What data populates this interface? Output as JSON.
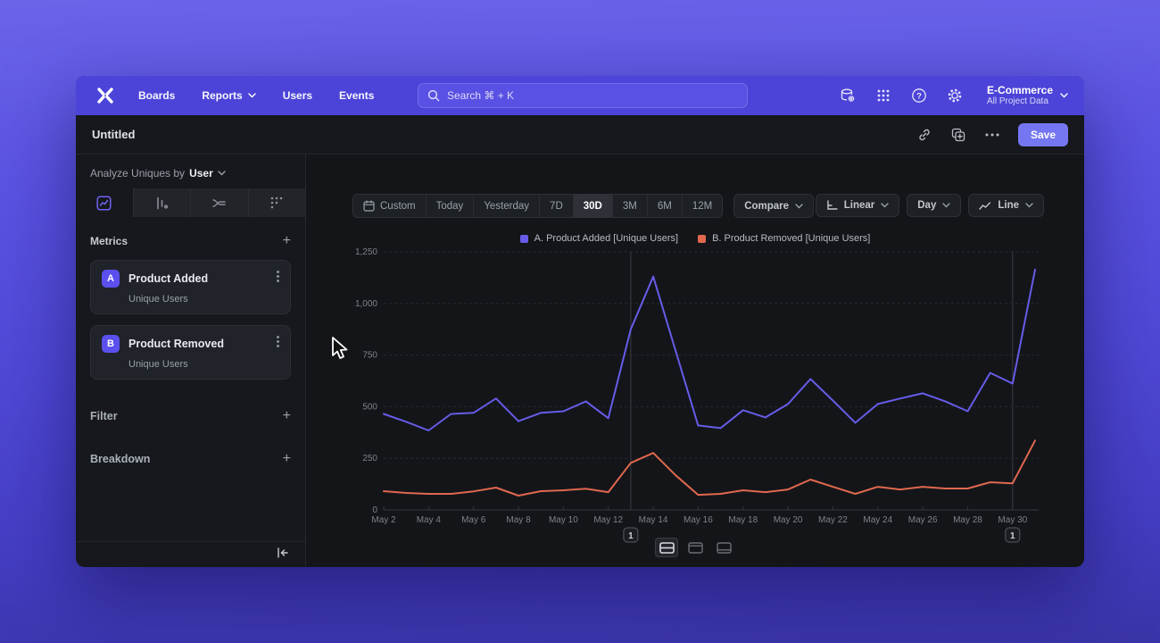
{
  "topnav": {
    "items": [
      "Boards",
      "Reports",
      "Users",
      "Events"
    ],
    "search_placeholder": "Search  ⌘ + K",
    "project": {
      "name": "E-Commerce",
      "subtitle": "All Project Data"
    }
  },
  "titlebar": {
    "title": "Untitled",
    "save_label": "Save"
  },
  "sidebar": {
    "analyze_prefix": "Analyze Uniques by",
    "analyze_value": "User",
    "metrics_label": "Metrics",
    "metrics": [
      {
        "letter": "A",
        "name": "Product Added",
        "sub": "Unique Users"
      },
      {
        "letter": "B",
        "name": "Product Removed",
        "sub": "Unique Users"
      }
    ],
    "filter_label": "Filter",
    "breakdown_label": "Breakdown"
  },
  "toolbar": {
    "ranges": [
      "Custom",
      "Today",
      "Yesterday",
      "7D",
      "30D",
      "3M",
      "6M",
      "12M"
    ],
    "active_range": "30D",
    "compare_label": "Compare",
    "scale_label": "Linear",
    "interval_label": "Day",
    "chart_type_label": "Line"
  },
  "colors": {
    "accent": "#5b50ee",
    "nav": "#4c44d8",
    "series_a": "#675ce8",
    "series_b": "#e0684e"
  },
  "chart_data": {
    "type": "line",
    "title": "",
    "xlabel": "",
    "ylabel": "",
    "ylim": [
      0,
      1250
    ],
    "yticks": [
      0,
      250,
      500,
      750,
      1000,
      1250
    ],
    "ytick_labels": [
      "0",
      "250",
      "500",
      "750",
      "1,000",
      "1,250"
    ],
    "grid": true,
    "legend_position": "top-center",
    "x": [
      "May 2",
      "May 3",
      "May 4",
      "May 5",
      "May 6",
      "May 7",
      "May 8",
      "May 9",
      "May 10",
      "May 11",
      "May 12",
      "May 13",
      "May 14",
      "May 15",
      "May 16",
      "May 17",
      "May 18",
      "May 19",
      "May 20",
      "May 21",
      "May 22",
      "May 23",
      "May 24",
      "May 25",
      "May 26",
      "May 27",
      "May 28",
      "May 29",
      "May 30",
      "May 31"
    ],
    "xtick_shown_every": 2,
    "series": [
      {
        "name": "A. Product Added [Unique Users]",
        "color": "#675ce8",
        "values": [
          465,
          427,
          385,
          465,
          470,
          540,
          430,
          470,
          478,
          526,
          444,
          875,
          1130,
          770,
          409,
          396,
          483,
          448,
          513,
          634,
          530,
          422,
          513,
          540,
          565,
          526,
          478,
          664,
          612,
          1164
        ]
      },
      {
        "name": "B. Product Removed [Unique Users]",
        "color": "#e0684e",
        "values": [
          91,
          82,
          78,
          78,
          90,
          108,
          69,
          91,
          95,
          103,
          86,
          228,
          276,
          168,
          73,
          78,
          95,
          86,
          99,
          147,
          112,
          78,
          112,
          99,
          112,
          104,
          104,
          134,
          129,
          336
        ]
      }
    ],
    "annotations": [
      {
        "label": "1",
        "x_index": 11
      },
      {
        "label": "1",
        "x_index": 28
      }
    ]
  }
}
